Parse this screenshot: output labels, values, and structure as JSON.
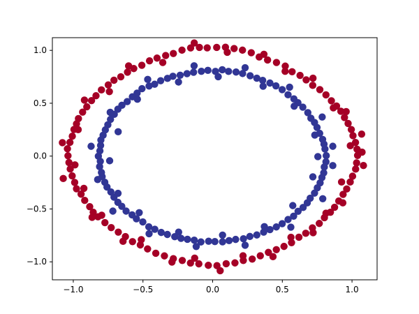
{
  "chart_data": {
    "type": "scatter",
    "title": "",
    "xlabel": "",
    "ylabel": "",
    "xlim": [
      -1.15,
      1.18
    ],
    "ylim": [
      -1.17,
      1.12
    ],
    "grid": false,
    "legend": "none",
    "x_ticks": [
      -1.0,
      -0.5,
      0.0,
      0.5,
      1.0
    ],
    "x_tick_labels": [
      "−1.0",
      "−0.5",
      "0.0",
      "0.5",
      "1.0"
    ],
    "y_ticks": [
      -1.0,
      -0.5,
      0.0,
      0.5,
      1.0
    ],
    "y_tick_labels": [
      "−1.0",
      "−0.5",
      "0.0",
      "0.5",
      "1.0"
    ],
    "series": [
      {
        "color": "#a50026",
        "description": "outer ring, radius about 1.0",
        "points": [
          [
            1.04,
            0.006
          ],
          [
            1.036,
            0.065
          ],
          [
            1.025,
            0.129
          ],
          [
            1.007,
            0.193
          ],
          [
            0.995,
            0.251
          ],
          [
            0.972,
            0.309
          ],
          [
            0.946,
            0.365
          ],
          [
            0.92,
            0.424
          ],
          [
            0.889,
            0.474
          ],
          [
            0.852,
            0.523
          ],
          [
            0.813,
            0.579
          ],
          [
            0.769,
            0.629
          ],
          [
            0.718,
            0.669
          ],
          [
            0.671,
            0.721
          ],
          [
            0.627,
            0.763
          ],
          [
            0.57,
            0.798
          ],
          [
            0.521,
            0.851
          ],
          [
            0.458,
            0.885
          ],
          [
            0.394,
            0.909
          ],
          [
            0.334,
            0.937
          ],
          [
            0.277,
            0.978
          ],
          [
            0.214,
            1.002
          ],
          [
            0.154,
            1.017
          ],
          [
            0.092,
            1.03
          ],
          [
            0.029,
            1.028
          ],
          [
            -0.039,
            1.024
          ],
          [
            -0.095,
            1.028
          ],
          [
            -0.158,
            1.023
          ],
          [
            -0.22,
            1.002
          ],
          [
            -0.282,
            0.97
          ],
          [
            -0.337,
            0.951
          ],
          [
            -0.399,
            0.927
          ],
          [
            -0.453,
            0.901
          ],
          [
            -0.508,
            0.859
          ],
          [
            -0.566,
            0.828
          ],
          [
            -0.611,
            0.794
          ],
          [
            -0.659,
            0.75
          ],
          [
            -0.708,
            0.718
          ],
          [
            -0.749,
            0.673
          ],
          [
            -0.798,
            0.626
          ],
          [
            -0.837,
            0.571
          ],
          [
            -0.869,
            0.525
          ],
          [
            -0.903,
            0.466
          ],
          [
            -0.933,
            0.416
          ],
          [
            -0.963,
            0.355
          ],
          [
            -0.977,
            0.305
          ],
          [
            -0.995,
            0.252
          ],
          [
            -1.007,
            0.188
          ],
          [
            -1.024,
            0.13
          ],
          [
            -1.042,
            0.069
          ],
          [
            -1.038,
            0.003
          ],
          [
            -1.031,
            -0.061
          ],
          [
            -1.022,
            -0.122
          ],
          [
            -1.008,
            -0.187
          ],
          [
            -0.99,
            -0.249
          ],
          [
            -0.977,
            -0.309
          ],
          [
            -0.944,
            -0.36
          ],
          [
            -0.918,
            -0.419
          ],
          [
            -0.882,
            -0.478
          ],
          [
            -0.857,
            -0.531
          ],
          [
            -0.823,
            -0.574
          ],
          [
            -0.773,
            -0.629
          ],
          [
            -0.728,
            -0.676
          ],
          [
            -0.677,
            -0.719
          ],
          [
            -0.626,
            -0.761
          ],
          [
            -0.575,
            -0.809
          ],
          [
            -0.519,
            -0.84
          ],
          [
            -0.467,
            -0.878
          ],
          [
            -0.408,
            -0.919
          ],
          [
            -0.346,
            -0.944
          ],
          [
            -0.282,
            -0.97
          ],
          [
            -0.218,
            -0.987
          ],
          [
            -0.159,
            -1.011
          ],
          [
            -0.099,
            -1.019
          ],
          [
            -0.031,
            -1.033
          ],
          [
            0.031,
            -1.036
          ],
          [
            0.097,
            -1.018
          ],
          [
            0.16,
            -1.01
          ],
          [
            0.22,
            -0.987
          ],
          [
            0.284,
            -0.974
          ],
          [
            0.342,
            -0.943
          ],
          [
            0.4,
            -0.911
          ],
          [
            0.457,
            -0.885
          ],
          [
            0.512,
            -0.854
          ],
          [
            0.566,
            -0.819
          ],
          [
            0.619,
            -0.767
          ],
          [
            0.668,
            -0.73
          ],
          [
            0.716,
            -0.679
          ],
          [
            0.765,
            -0.637
          ],
          [
            0.802,
            -0.582
          ],
          [
            0.845,
            -0.531
          ],
          [
            0.875,
            -0.484
          ],
          [
            0.905,
            -0.425
          ],
          [
            0.936,
            -0.362
          ],
          [
            0.962,
            -0.311
          ],
          [
            0.987,
            -0.245
          ],
          [
            1.004,
            -0.19
          ],
          [
            1.026,
            -0.123
          ],
          [
            1.033,
            -0.064
          ],
          [
            1.072,
            0.037
          ],
          [
            0.988,
            0.098
          ],
          [
            1.069,
            0.208
          ],
          [
            0.958,
            0.421
          ],
          [
            0.866,
            0.456
          ],
          [
            0.72,
            0.737
          ],
          [
            0.52,
            0.802
          ],
          [
            0.368,
            0.963
          ],
          [
            0.105,
            0.982
          ],
          [
            -0.132,
            1.07
          ],
          [
            -0.358,
            0.885
          ],
          [
            -0.603,
            0.853
          ],
          [
            -0.741,
            0.61
          ],
          [
            -0.92,
            0.53
          ],
          [
            -0.965,
            0.25
          ],
          [
            -1.078,
            0.127
          ],
          [
            -0.988,
            -0.083
          ],
          [
            -1.072,
            -0.212
          ],
          [
            -0.924,
            -0.305
          ],
          [
            -0.865,
            -0.579
          ],
          [
            -0.796,
            -0.559
          ],
          [
            -0.643,
            -0.806
          ],
          [
            -0.512,
            -0.79
          ],
          [
            -0.292,
            -1.002
          ],
          [
            -0.129,
            -0.965
          ],
          [
            0.054,
            -1.084
          ],
          [
            0.218,
            -0.943
          ],
          [
            0.433,
            -0.951
          ],
          [
            0.562,
            -0.768
          ],
          [
            0.721,
            -0.724
          ],
          [
            0.813,
            -0.54
          ],
          [
            0.934,
            -0.442
          ],
          [
            0.925,
            -0.245
          ],
          [
            1.082,
            -0.089
          ]
        ]
      },
      {
        "color": "#313695",
        "description": "inner ring, radius about 0.8",
        "points": [
          [
            0.815,
            0.004
          ],
          [
            0.806,
            0.067
          ],
          [
            0.799,
            0.113
          ],
          [
            0.789,
            0.158
          ],
          [
            0.768,
            0.215
          ],
          [
            0.749,
            0.271
          ],
          [
            0.731,
            0.318
          ],
          [
            0.705,
            0.358
          ],
          [
            0.683,
            0.411
          ],
          [
            0.647,
            0.463
          ],
          [
            0.612,
            0.505
          ],
          [
            0.583,
            0.541
          ],
          [
            0.541,
            0.58
          ],
          [
            0.499,
            0.629
          ],
          [
            0.454,
            0.664
          ],
          [
            0.411,
            0.691
          ],
          [
            0.359,
            0.716
          ],
          [
            0.317,
            0.737
          ],
          [
            0.269,
            0.76
          ],
          [
            0.215,
            0.781
          ],
          [
            0.168,
            0.795
          ],
          [
            0.114,
            0.801
          ],
          [
            0.069,
            0.817
          ],
          [
            0.02,
            0.801
          ],
          [
            -0.034,
            0.811
          ],
          [
            -0.081,
            0.802
          ],
          [
            -0.137,
            0.793
          ],
          [
            -0.184,
            0.78
          ],
          [
            -0.233,
            0.765
          ],
          [
            -0.285,
            0.755
          ],
          [
            -0.324,
            0.735
          ],
          [
            -0.373,
            0.713
          ],
          [
            -0.416,
            0.68
          ],
          [
            -0.456,
            0.663
          ],
          [
            -0.507,
            0.638
          ],
          [
            -0.542,
            0.596
          ],
          [
            -0.576,
            0.561
          ],
          [
            -0.613,
            0.516
          ],
          [
            -0.651,
            0.481
          ],
          [
            -0.68,
            0.444
          ],
          [
            -0.706,
            0.395
          ],
          [
            -0.733,
            0.347
          ],
          [
            -0.752,
            0.296
          ],
          [
            -0.77,
            0.248
          ],
          [
            -0.786,
            0.197
          ],
          [
            -0.802,
            0.152
          ],
          [
            -0.804,
            0.101
          ],
          [
            -0.809,
            0.05
          ],
          [
            -0.82,
            -0.001
          ],
          [
            -0.806,
            -0.05
          ],
          [
            -0.811,
            -0.1
          ],
          [
            -0.798,
            -0.155
          ],
          [
            -0.793,
            -0.194
          ],
          [
            -0.774,
            -0.247
          ],
          [
            -0.758,
            -0.293
          ],
          [
            -0.73,
            -0.339
          ],
          [
            -0.708,
            -0.388
          ],
          [
            -0.68,
            -0.437
          ],
          [
            -0.652,
            -0.475
          ],
          [
            -0.621,
            -0.52
          ],
          [
            -0.578,
            -0.556
          ],
          [
            -0.547,
            -0.593
          ],
          [
            -0.501,
            -0.623
          ],
          [
            -0.458,
            -0.669
          ],
          [
            -0.415,
            -0.692
          ],
          [
            -0.369,
            -0.722
          ],
          [
            -0.325,
            -0.741
          ],
          [
            -0.272,
            -0.762
          ],
          [
            -0.227,
            -0.778
          ],
          [
            -0.181,
            -0.787
          ],
          [
            -0.132,
            -0.795
          ],
          [
            -0.084,
            -0.812
          ],
          [
            -0.029,
            -0.805
          ],
          [
            0.016,
            -0.808
          ],
          [
            0.071,
            -0.811
          ],
          [
            0.118,
            -0.799
          ],
          [
            0.165,
            -0.788
          ],
          [
            0.221,
            -0.782
          ],
          [
            0.267,
            -0.76
          ],
          [
            0.317,
            -0.746
          ],
          [
            0.366,
            -0.719
          ],
          [
            0.411,
            -0.695
          ],
          [
            0.457,
            -0.67
          ],
          [
            0.499,
            -0.639
          ],
          [
            0.541,
            -0.6
          ],
          [
            0.581,
            -0.568
          ],
          [
            0.613,
            -0.522
          ],
          [
            0.649,
            -0.486
          ],
          [
            0.679,
            -0.442
          ],
          [
            0.7,
            -0.398
          ],
          [
            0.731,
            -0.35
          ],
          [
            0.751,
            -0.3
          ],
          [
            0.771,
            -0.253
          ],
          [
            0.784,
            -0.203
          ],
          [
            0.797,
            -0.158
          ],
          [
            0.801,
            -0.103
          ],
          [
            0.813,
            -0.054
          ],
          [
            0.755,
            -0.005
          ],
          [
            0.862,
            0.093
          ],
          [
            0.733,
            0.199
          ],
          [
            0.786,
            0.37
          ],
          [
            0.585,
            0.472
          ],
          [
            0.552,
            0.652
          ],
          [
            0.362,
            0.661
          ],
          [
            0.233,
            0.836
          ],
          [
            0.04,
            0.751
          ],
          [
            -0.133,
            0.854
          ],
          [
            -0.245,
            0.701
          ],
          [
            -0.466,
            0.725
          ],
          [
            -0.54,
            0.538
          ],
          [
            -0.735,
            0.414
          ],
          [
            -0.678,
            0.23
          ],
          [
            -0.872,
            0.093
          ],
          [
            -0.739,
            -0.044
          ],
          [
            -0.825,
            -0.222
          ],
          [
            -0.679,
            -0.352
          ],
          [
            -0.716,
            -0.52
          ],
          [
            -0.527,
            -0.535
          ],
          [
            -0.456,
            -0.734
          ],
          [
            -0.244,
            -0.719
          ],
          [
            -0.118,
            -0.855
          ],
          [
            0.071,
            -0.747
          ],
          [
            0.233,
            -0.843
          ],
          [
            0.371,
            -0.667
          ],
          [
            0.561,
            -0.672
          ],
          [
            0.575,
            -0.468
          ],
          [
            0.79,
            -0.403
          ],
          [
            0.719,
            -0.196
          ],
          [
            0.862,
            -0.09
          ]
        ]
      }
    ]
  }
}
